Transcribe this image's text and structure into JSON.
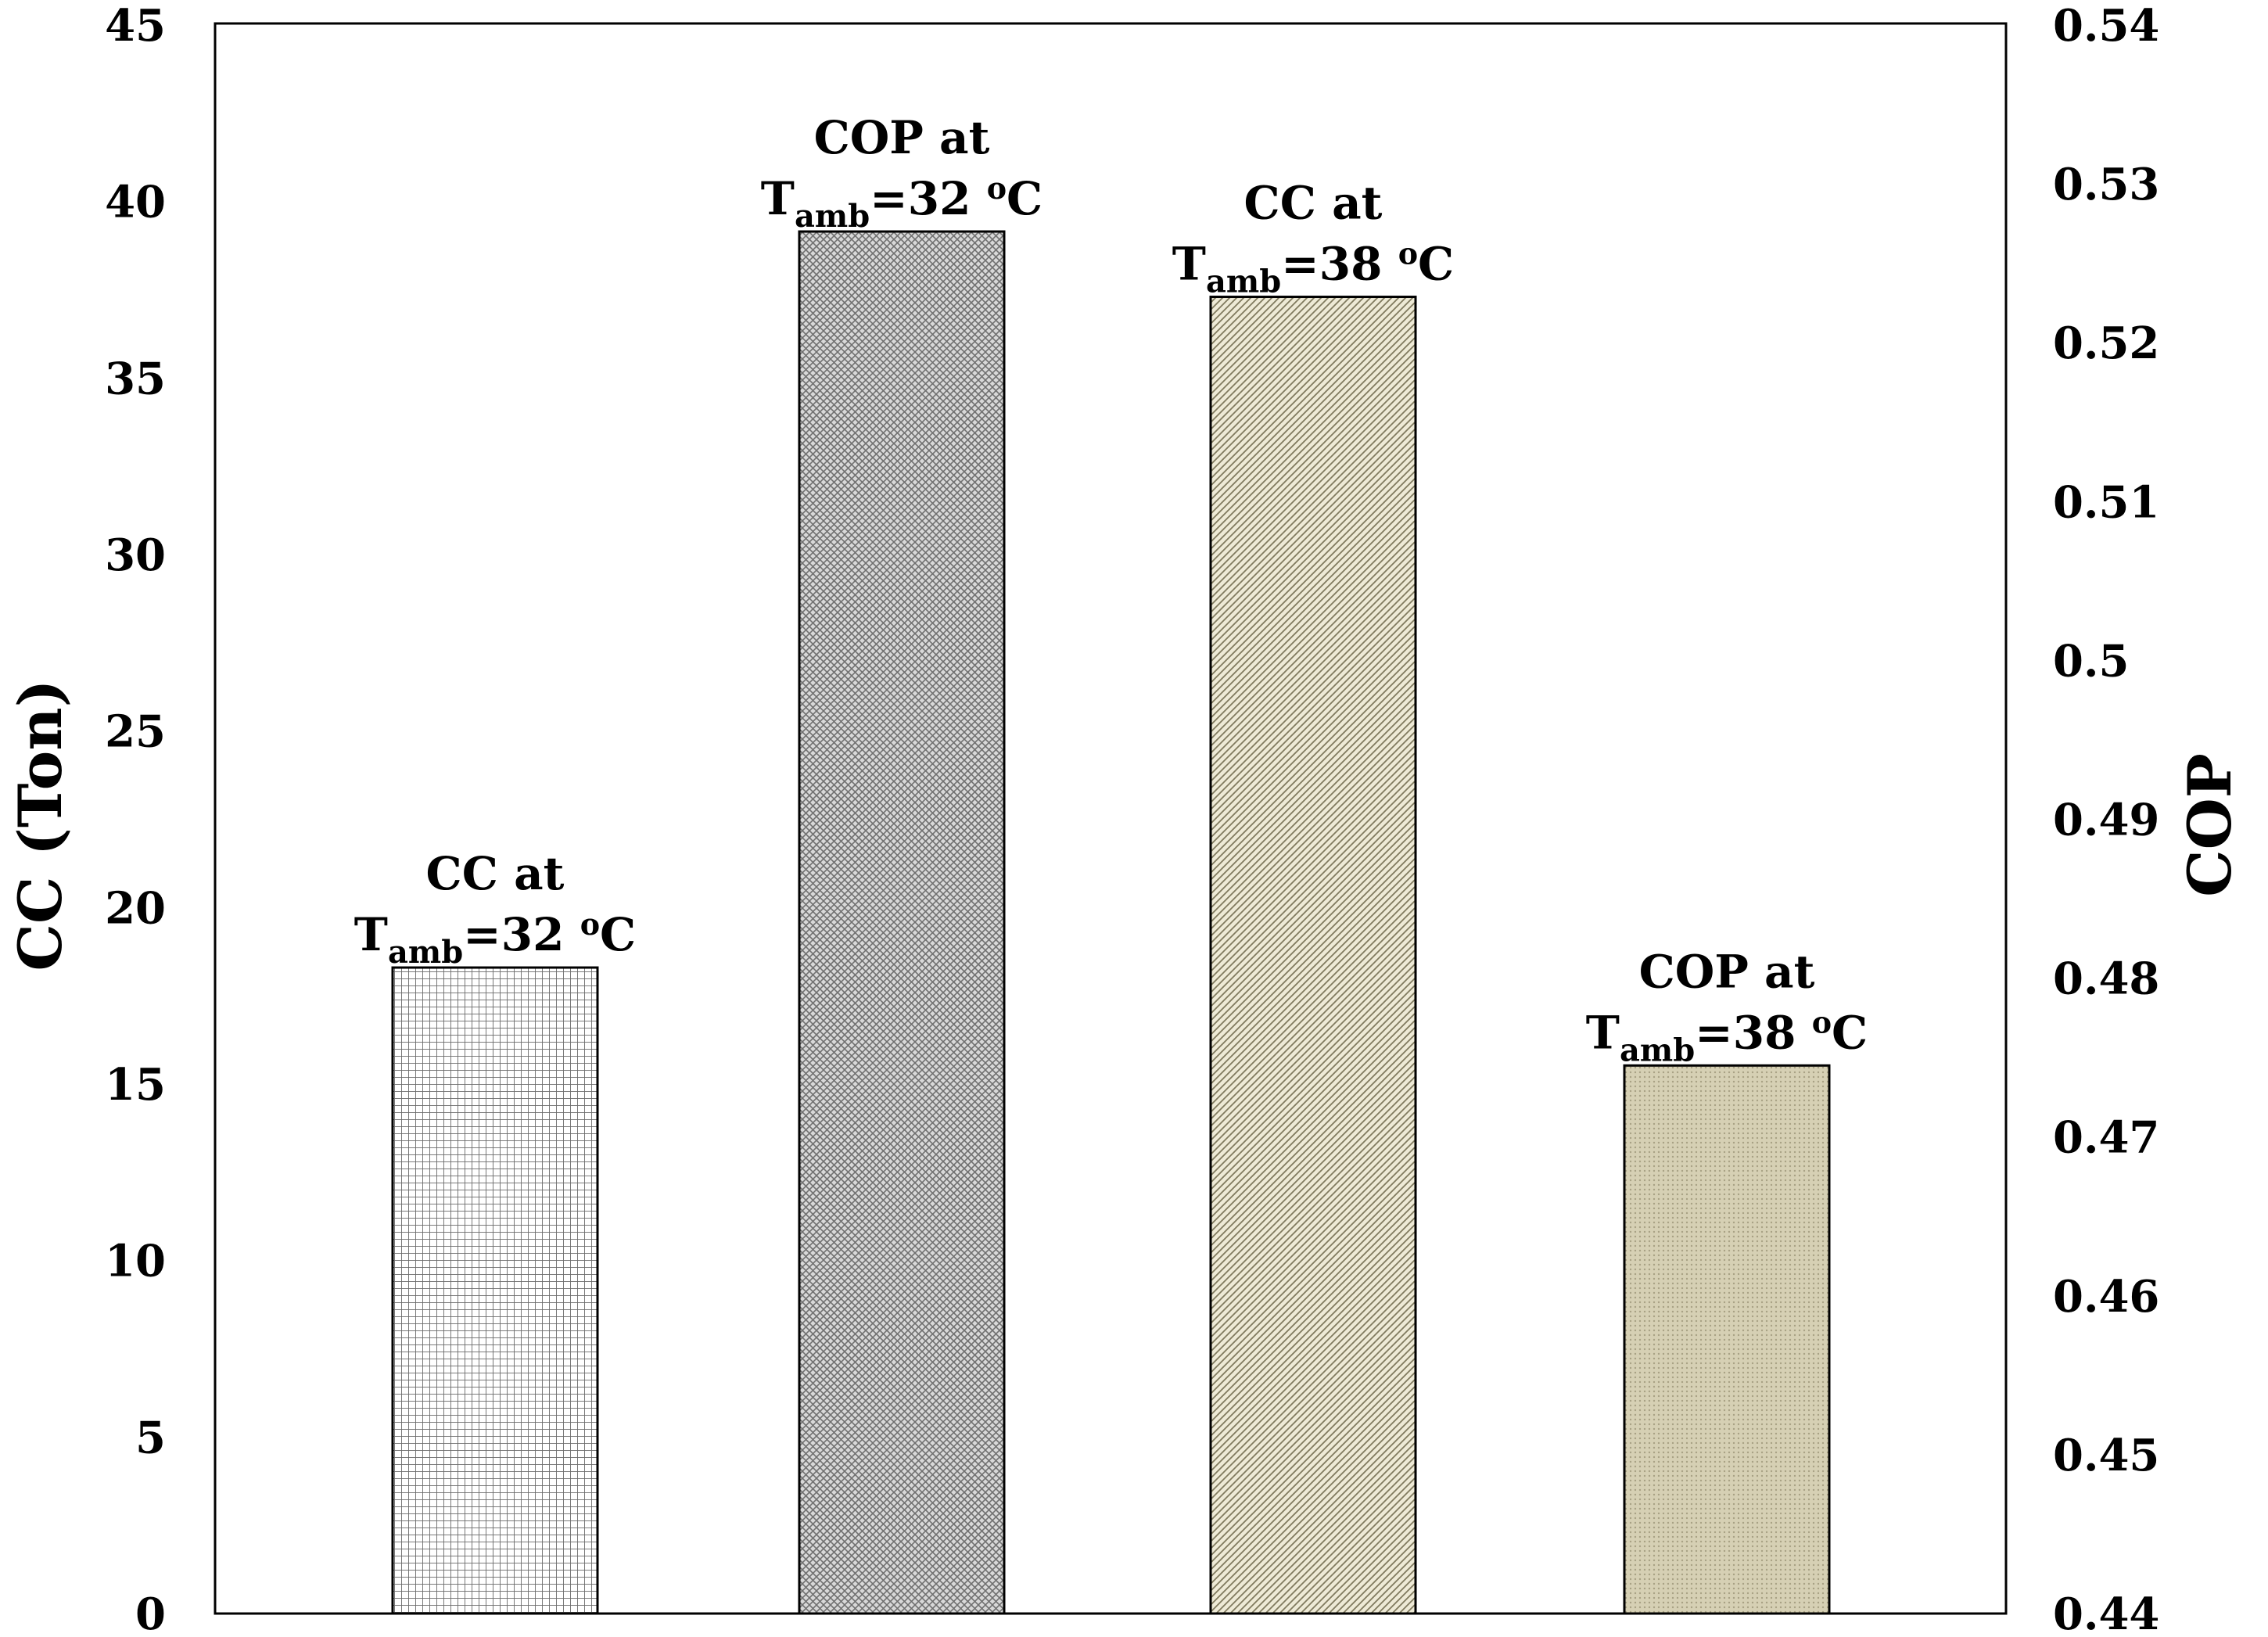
{
  "chart_data": {
    "type": "bar",
    "grid": false,
    "left_axis": {
      "label": "CC (Ton)",
      "ylim": [
        0,
        45
      ],
      "ticks": [
        "0",
        "5",
        "10",
        "15",
        "20",
        "25",
        "30",
        "35",
        "40",
        "45"
      ]
    },
    "right_axis": {
      "label": "COP",
      "ylim": [
        0.44,
        0.54
      ],
      "ticks": [
        "0.44",
        "0.45",
        "0.46",
        "0.47",
        "0.48",
        "0.49",
        "0.5",
        "0.51",
        "0.52",
        "0.53",
        "0.54"
      ]
    },
    "bars": [
      {
        "line1": "CC at",
        "label_t": "T",
        "label_sub": "amb",
        "label_eq": "=32 ",
        "label_sup": "o",
        "label_unit": "C",
        "axis": "left",
        "value": 18.3,
        "color": "#ffffff",
        "pattern": "grid"
      },
      {
        "line1": "COP at",
        "label_t": "T",
        "label_sub": "amb",
        "label_eq": "=32 ",
        "label_sup": "o",
        "label_unit": "C",
        "axis": "right",
        "value": 0.527,
        "color": "#c8c8c8",
        "pattern": "crosshatch"
      },
      {
        "line1": "CC at",
        "label_t": "T",
        "label_sub": "amb",
        "label_eq": "=38 ",
        "label_sup": "o",
        "label_unit": "C",
        "axis": "left",
        "value": 37.3,
        "color": "#e6e2cc",
        "pattern": "diagonal"
      },
      {
        "line1": "COP at",
        "label_t": "T",
        "label_sub": "amb",
        "label_eq": "=38 ",
        "label_sup": "o",
        "label_unit": "C",
        "axis": "right",
        "value": 0.4745,
        "color": "#d2ccb0",
        "pattern": "dots"
      }
    ]
  }
}
